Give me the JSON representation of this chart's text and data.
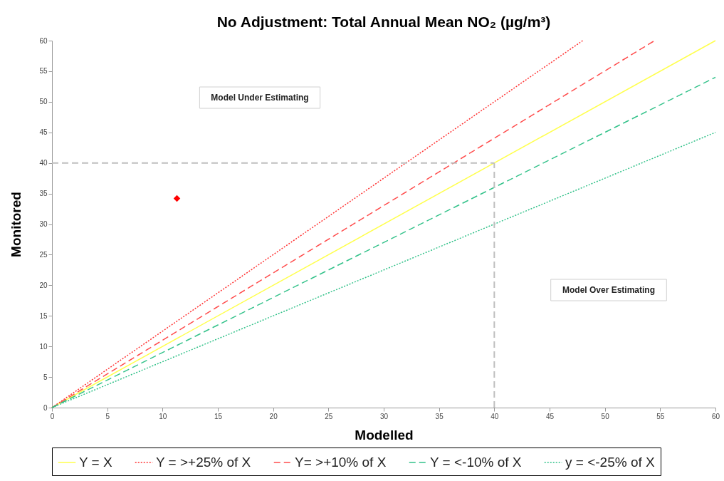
{
  "chart_data": {
    "type": "line",
    "title": "No Adjustment: Total Annual Mean NO₂ (µg/m³)",
    "xlabel": "Modelled",
    "ylabel": "Monitored",
    "xlim": [
      0,
      60
    ],
    "ylim": [
      0,
      60
    ],
    "xticks": [
      0,
      5,
      10,
      15,
      20,
      25,
      30,
      35,
      40,
      45,
      50,
      55,
      60
    ],
    "yticks": [
      0,
      5,
      10,
      15,
      20,
      25,
      30,
      35,
      40,
      45,
      50,
      55,
      60
    ],
    "grid": false,
    "legend": "bottom",
    "annotations": [
      "Model Under Estimating",
      "Model Over Estimating"
    ],
    "series": [
      {
        "name": "Y = X",
        "color": "#ffff4d",
        "line_style": "solid",
        "x": [
          0,
          60
        ],
        "values": [
          0,
          60
        ]
      },
      {
        "name": "Y = >+25% of X",
        "color": "#ff3333",
        "line_style": "dotted",
        "x": [
          0,
          48
        ],
        "values": [
          0,
          60
        ]
      },
      {
        "name": "Y= >+10% of X",
        "color": "#ff4d4d",
        "line_style": "dashed",
        "x": [
          0,
          54.5
        ],
        "values": [
          0,
          60
        ]
      },
      {
        "name": "Y = <-10% of X",
        "color": "#33c28a",
        "line_style": "dashed",
        "x": [
          0,
          60
        ],
        "values": [
          0,
          54
        ]
      },
      {
        "name": "y = <-25% of X",
        "color": "#33c28a",
        "line_style": "dotted",
        "x": [
          0,
          60
        ],
        "values": [
          0,
          45
        ]
      },
      {
        "color": "#bfbfbf",
        "line_style": "dashed",
        "x": [
          40,
          40
        ],
        "values": [
          0,
          40
        ]
      },
      {
        "color": "#bfbfbf",
        "line_style": "dashed",
        "x": [
          0,
          40
        ],
        "values": [
          40,
          40
        ]
      },
      {
        "type": "scatter",
        "color": "#ff0000",
        "marker": "diamond",
        "x": [
          11.3
        ],
        "values": [
          34.2
        ]
      }
    ]
  }
}
